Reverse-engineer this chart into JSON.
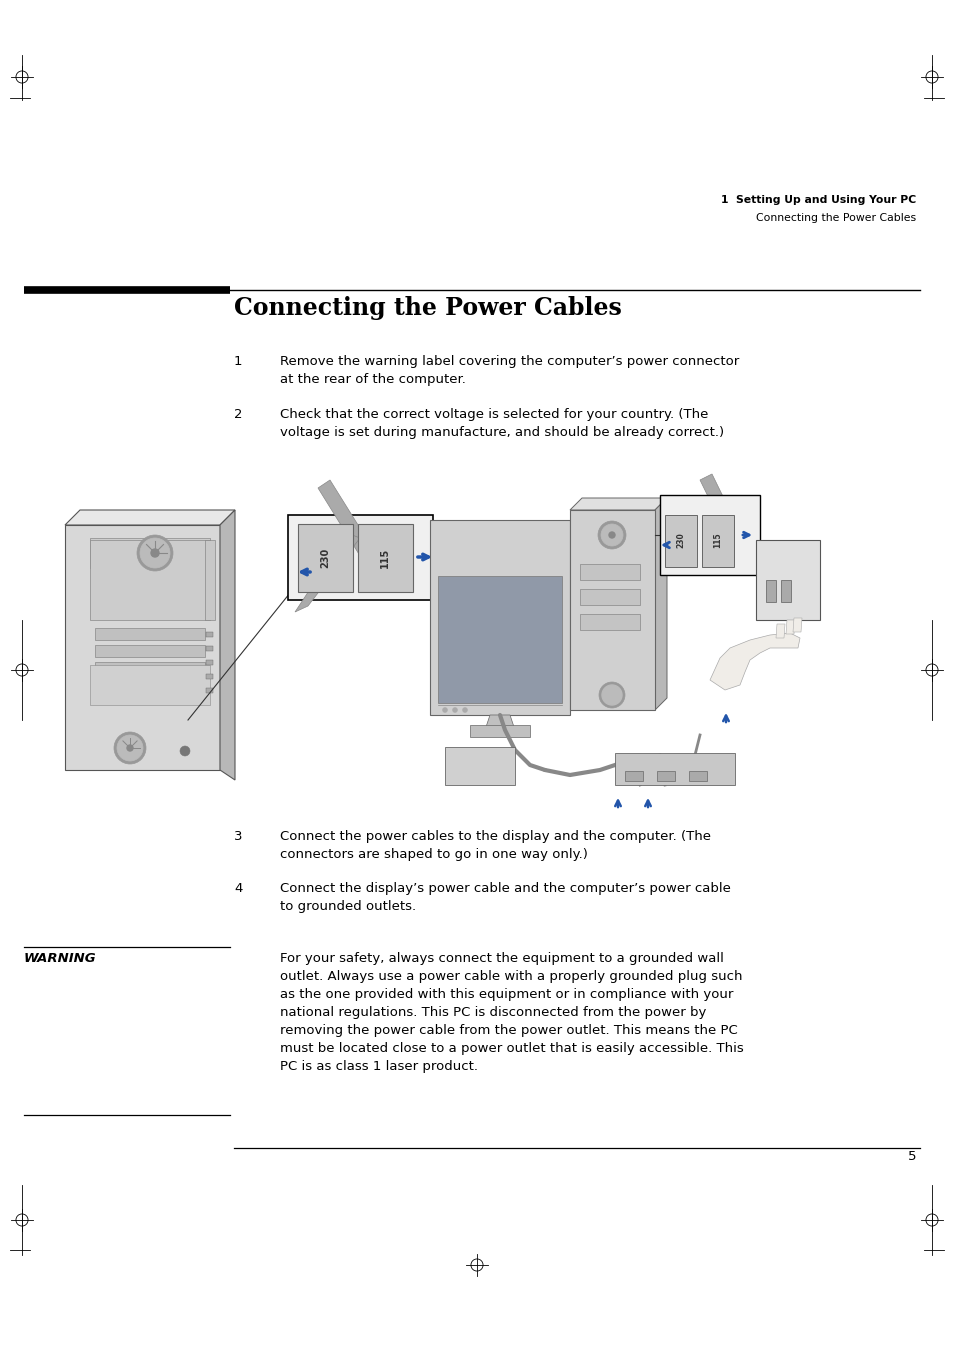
{
  "page_bg": "#ffffff",
  "header_bold_text": "1  Setting Up and Using Your PC",
  "header_sub_text": "Connecting the Power Cables",
  "section_title": "Connecting the Power Cables",
  "step1_num": "1",
  "step1_text": "Remove the warning label covering the computer’s power connector\nat the rear of the computer.",
  "step2_num": "2",
  "step2_text": "Check that the correct voltage is selected for your country. (The\nvoltage is set during manufacture, and should be already correct.)",
  "step3_num": "3",
  "step3_text": "Connect the power cables to the display and the computer. (The\nconnectors are shaped to go in one way only.)",
  "step4_num": "4",
  "step4_text": "Connect the display’s power cable and the computer’s power cable\nto grounded outlets.",
  "warning_label": "WARNING",
  "warning_text": "For your safety, always connect the equipment to a grounded wall\noutlet. Always use a power cable with a properly grounded plug such\nas the one provided with this equipment or in compliance with your\nnational regulations. This PC is disconnected from the power by\nremoving the power cable from the power outlet. This means the PC\nmust be located close to a power outlet that is easily accessible. This\nPC is as class 1 laser product.",
  "page_number": "5",
  "text_color": "#000000"
}
